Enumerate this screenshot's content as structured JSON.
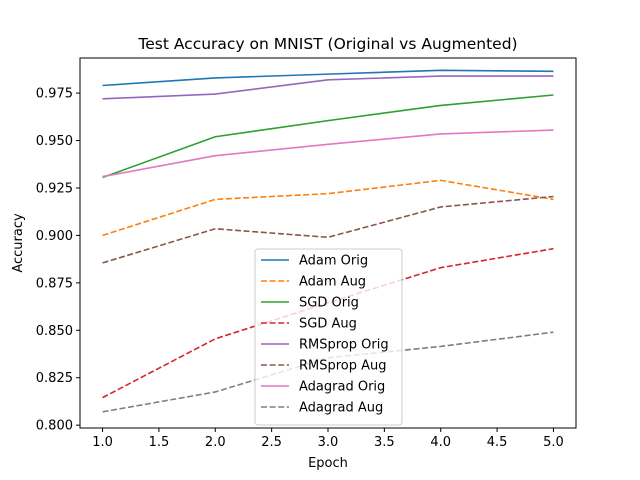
{
  "chart_data": {
    "type": "line",
    "title": "Test Accuracy on MNIST (Original vs Augmented)",
    "xlabel": "Epoch",
    "ylabel": "Accuracy",
    "xlim": [
      0.8,
      5.2
    ],
    "ylim": [
      0.7985,
      0.9935
    ],
    "x": [
      1,
      2,
      3,
      4,
      5
    ],
    "xticks": [
      1.0,
      1.5,
      2.0,
      2.5,
      3.0,
      3.5,
      4.0,
      4.5,
      5.0
    ],
    "xtick_labels": [
      "1.0",
      "1.5",
      "2.0",
      "2.5",
      "3.0",
      "3.5",
      "4.0",
      "4.5",
      "5.0"
    ],
    "yticks": [
      0.8,
      0.825,
      0.85,
      0.875,
      0.9,
      0.925,
      0.95,
      0.975
    ],
    "ytick_labels": [
      "0.800",
      "0.825",
      "0.850",
      "0.875",
      "0.900",
      "0.925",
      "0.950",
      "0.975"
    ],
    "grid": false,
    "legend_position": "lower-center",
    "series": [
      {
        "name": "Adam Orig",
        "values": [
          0.979,
          0.983,
          0.985,
          0.987,
          0.9865
        ],
        "color": "#1f77b4",
        "dash": "solid"
      },
      {
        "name": "Adam Aug",
        "values": [
          0.9,
          0.919,
          0.922,
          0.929,
          0.919
        ],
        "color": "#ff7f0e",
        "dash": "dashed"
      },
      {
        "name": "SGD Orig",
        "values": [
          0.9305,
          0.952,
          0.9605,
          0.9685,
          0.974
        ],
        "color": "#2ca02c",
        "dash": "solid"
      },
      {
        "name": "SGD Aug",
        "values": [
          0.8145,
          0.8455,
          0.8645,
          0.883,
          0.893
        ],
        "color": "#d62728",
        "dash": "dashed"
      },
      {
        "name": "RMSprop Orig",
        "values": [
          0.972,
          0.9745,
          0.982,
          0.984,
          0.984
        ],
        "color": "#9467bd",
        "dash": "solid"
      },
      {
        "name": "RMSprop Aug",
        "values": [
          0.8855,
          0.9035,
          0.899,
          0.915,
          0.9205
        ],
        "color": "#8c564b",
        "dash": "dashed"
      },
      {
        "name": "Adagrad Orig",
        "values": [
          0.931,
          0.942,
          0.948,
          0.9535,
          0.9555
        ],
        "color": "#e377c2",
        "dash": "solid"
      },
      {
        "name": "Adagrad Aug",
        "values": [
          0.807,
          0.8175,
          0.8355,
          0.8415,
          0.849
        ],
        "color": "#7f7f7f",
        "dash": "dashed"
      }
    ]
  }
}
